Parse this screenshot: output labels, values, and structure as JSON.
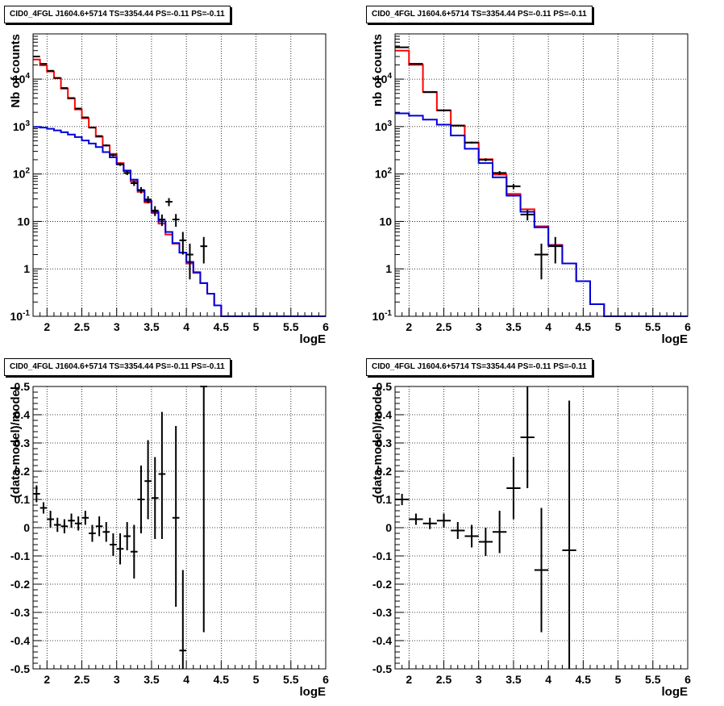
{
  "chart_data": [
    {
      "type": "line",
      "title": "CID0_4FGL J1604.6+5714 TS=3354.44 PS=-0.11 PS=-0.11",
      "xlabel": "logE",
      "ylabel": "Nb of counts",
      "xlim": [
        1.8,
        6.0
      ],
      "ylim": [
        0.1,
        90000
      ],
      "yscale": "log",
      "grid": true,
      "x_ticks": [
        "2",
        "2.5",
        "3",
        "3.5",
        "4",
        "4.5",
        "5",
        "5.5",
        "6"
      ],
      "y_ticks": [
        "10^-1",
        "1",
        "10",
        "10^2",
        "10^3",
        "10^4"
      ],
      "bin_width": 0.1,
      "series": [
        {
          "role": "total-model",
          "color": "#ff0000",
          "values": [
            26000,
            19500,
            14500,
            10500,
            6300,
            3900,
            2300,
            1500,
            960,
            610,
            400,
            265,
            170,
            115,
            70,
            42,
            25,
            15,
            9,
            5.3,
            3.4,
            2.2,
            1.3,
            0.82,
            0.5,
            0.3,
            0.17,
            0.1,
            0.1,
            0.1,
            0.1,
            0.1,
            0.1,
            0.1,
            0.1,
            0.1,
            0.1,
            0.1,
            0.1,
            0.1,
            0.1,
            0.1
          ]
        },
        {
          "role": "component-model",
          "color": "#0000dd",
          "values": [
            980,
            950,
            900,
            830,
            760,
            680,
            600,
            510,
            440,
            370,
            290,
            225,
            160,
            118,
            76,
            45,
            27,
            16,
            10,
            6,
            3.5,
            2.2,
            1.4,
            0.85,
            0.5,
            0.3,
            0.17,
            0.1,
            0.1,
            0.1,
            0.1,
            0.1,
            0.1,
            0.1,
            0.1,
            0.1,
            0.1,
            0.1,
            0.1,
            0.1,
            0.1,
            0.1
          ]
        },
        {
          "role": "data",
          "color": "#000000",
          "points": [
            {
              "x": 1.85,
              "y": 30000,
              "lo": 29800,
              "hi": 30200
            },
            {
              "x": 1.95,
              "y": 21000,
              "lo": 20800,
              "hi": 21200
            },
            {
              "x": 2.05,
              "y": 15000,
              "lo": 14850,
              "hi": 15150
            },
            {
              "x": 2.15,
              "y": 10600,
              "lo": 10450,
              "hi": 10750
            },
            {
              "x": 2.25,
              "y": 6500,
              "lo": 6400,
              "hi": 6600
            },
            {
              "x": 2.35,
              "y": 4000,
              "lo": 3930,
              "hi": 4070
            },
            {
              "x": 2.45,
              "y": 2400,
              "lo": 2350,
              "hi": 2450
            },
            {
              "x": 2.55,
              "y": 1560,
              "lo": 1520,
              "hi": 1600
            },
            {
              "x": 2.65,
              "y": 950,
              "lo": 920,
              "hi": 980
            },
            {
              "x": 2.75,
              "y": 630,
              "lo": 605,
              "hi": 655
            },
            {
              "x": 2.85,
              "y": 400,
              "lo": 380,
              "hi": 420
            },
            {
              "x": 2.95,
              "y": 250,
              "lo": 235,
              "hi": 265
            },
            {
              "x": 3.05,
              "y": 160,
              "lo": 148,
              "hi": 172
            },
            {
              "x": 3.15,
              "y": 105,
              "lo": 95,
              "hi": 115
            },
            {
              "x": 3.25,
              "y": 64,
              "lo": 56,
              "hi": 72
            },
            {
              "x": 3.35,
              "y": 46,
              "lo": 39,
              "hi": 53
            },
            {
              "x": 3.45,
              "y": 29,
              "lo": 24,
              "hi": 34
            },
            {
              "x": 3.55,
              "y": 17,
              "lo": 13,
              "hi": 21
            },
            {
              "x": 3.65,
              "y": 11,
              "lo": 8,
              "hi": 14
            },
            {
              "x": 3.75,
              "y": 26,
              "lo": 21,
              "hi": 31
            },
            {
              "x": 3.85,
              "y": 11,
              "lo": 7.7,
              "hi": 14.3
            },
            {
              "x": 3.95,
              "y": 4,
              "lo": 2,
              "hi": 6
            },
            {
              "x": 4.05,
              "y": 2,
              "lo": 0.6,
              "hi": 3.4
            },
            {
              "x": 4.25,
              "y": 3,
              "lo": 1.3,
              "hi": 4.7
            }
          ]
        }
      ]
    },
    {
      "type": "line",
      "title": "CID0_4FGL J1604.6+5714 TS=3354.44 PS=-0.11 PS=-0.11",
      "xlabel": "logE",
      "ylabel": "nb of counts",
      "xlim": [
        1.8,
        6.0
      ],
      "ylim": [
        0.1,
        90000
      ],
      "yscale": "log",
      "grid": true,
      "x_ticks": [
        "2",
        "2.5",
        "3",
        "3.5",
        "4",
        "4.5",
        "5",
        "5.5",
        "6"
      ],
      "y_ticks": [
        "10^-1",
        "1",
        "10",
        "10^2",
        "10^3",
        "10^4"
      ],
      "bin_width": 0.2,
      "series": [
        {
          "role": "total-model",
          "color": "#ff0000",
          "values": [
            40000,
            20000,
            5400,
            2200,
            1050,
            460,
            205,
            97,
            38,
            18,
            7.9,
            3.2,
            1.3,
            0.55,
            0.18,
            0.1,
            0.1,
            0.1,
            0.1,
            0.1,
            0.1
          ]
        },
        {
          "role": "component-model",
          "color": "#0000dd",
          "values": [
            1900,
            1700,
            1400,
            1100,
            650,
            340,
            170,
            85,
            35,
            16,
            7.5,
            3.1,
            1.3,
            0.55,
            0.18,
            0.1,
            0.1,
            0.1,
            0.1,
            0.1,
            0.1
          ]
        },
        {
          "role": "data",
          "color": "#000000",
          "points": [
            {
              "x": 1.9,
              "y": 47000,
              "lo": 46600,
              "hi": 47400
            },
            {
              "x": 2.1,
              "y": 21000,
              "lo": 20800,
              "hi": 21200
            },
            {
              "x": 2.3,
              "y": 5300,
              "lo": 5200,
              "hi": 5400
            },
            {
              "x": 2.5,
              "y": 2200,
              "lo": 2150,
              "hi": 2250
            },
            {
              "x": 2.7,
              "y": 1050,
              "lo": 1010,
              "hi": 1090
            },
            {
              "x": 2.9,
              "y": 460,
              "lo": 440,
              "hi": 480
            },
            {
              "x": 3.1,
              "y": 200,
              "lo": 186,
              "hi": 214
            },
            {
              "x": 3.3,
              "y": 105,
              "lo": 95,
              "hi": 115
            },
            {
              "x": 3.5,
              "y": 55,
              "lo": 48,
              "hi": 62
            },
            {
              "x": 3.7,
              "y": 14,
              "lo": 10.5,
              "hi": 17.5
            },
            {
              "x": 3.9,
              "y": 2,
              "lo": 0.6,
              "hi": 3.4
            },
            {
              "x": 4.1,
              "y": 3,
              "lo": 1.3,
              "hi": 4.7
            }
          ]
        }
      ]
    },
    {
      "type": "scatter",
      "title": "CID0_4FGL J1604.6+5714 TS=3354.44 PS=-0.11 PS=-0.11",
      "xlabel": "logE",
      "ylabel": "(data-model)/model",
      "xlim": [
        1.8,
        6.0
      ],
      "ylim": [
        -0.5,
        0.5
      ],
      "grid": true,
      "x_ticks": [
        "2",
        "2.5",
        "3",
        "3.5",
        "4",
        "4.5",
        "5",
        "5.5",
        "6"
      ],
      "y_ticks": [
        "-0.5",
        "-0.4",
        "-0.3",
        "-0.2",
        "-0.1",
        "0",
        "0.1",
        "0.2",
        "0.3",
        "0.4",
        "0.5"
      ],
      "points": [
        {
          "x": 1.85,
          "y": 0.12,
          "lo": 0.09,
          "hi": 0.15
        },
        {
          "x": 1.95,
          "y": 0.07,
          "lo": 0.05,
          "hi": 0.09
        },
        {
          "x": 2.05,
          "y": 0.03,
          "lo": 0.0,
          "hi": 0.06
        },
        {
          "x": 2.15,
          "y": 0.01,
          "lo": -0.015,
          "hi": 0.035
        },
        {
          "x": 2.25,
          "y": 0.005,
          "lo": -0.02,
          "hi": 0.03
        },
        {
          "x": 2.35,
          "y": 0.025,
          "lo": 0.0,
          "hi": 0.05
        },
        {
          "x": 2.45,
          "y": 0.015,
          "lo": -0.01,
          "hi": 0.04
        },
        {
          "x": 2.55,
          "y": 0.035,
          "lo": 0.01,
          "hi": 0.06
        },
        {
          "x": 2.65,
          "y": -0.02,
          "lo": -0.05,
          "hi": 0.01
        },
        {
          "x": 2.75,
          "y": 0.005,
          "lo": -0.03,
          "hi": 0.04
        },
        {
          "x": 2.85,
          "y": -0.015,
          "lo": -0.05,
          "hi": 0.02
        },
        {
          "x": 2.95,
          "y": -0.06,
          "lo": -0.1,
          "hi": -0.02
        },
        {
          "x": 3.05,
          "y": -0.075,
          "lo": -0.13,
          "hi": -0.02
        },
        {
          "x": 3.15,
          "y": -0.03,
          "lo": -0.08,
          "hi": 0.02
        },
        {
          "x": 3.25,
          "y": -0.085,
          "lo": -0.18,
          "hi": 0.01
        },
        {
          "x": 3.35,
          "y": 0.1,
          "lo": -0.02,
          "hi": 0.22
        },
        {
          "x": 3.45,
          "y": 0.165,
          "lo": 0.03,
          "hi": 0.31
        },
        {
          "x": 3.55,
          "y": 0.105,
          "lo": -0.04,
          "hi": 0.25
        },
        {
          "x": 3.65,
          "y": 0.19,
          "lo": -0.04,
          "hi": 0.41
        },
        {
          "x": 3.85,
          "y": 0.035,
          "lo": -0.28,
          "hi": 0.36
        },
        {
          "x": 3.95,
          "y": -0.435,
          "lo": -0.5,
          "hi": -0.15
        },
        {
          "x": 4.25,
          "y": 0.5,
          "lo": -0.37,
          "hi": 0.5
        }
      ]
    },
    {
      "type": "scatter",
      "title": "CID0_4FGL J1604.6+5714 TS=3354.44 PS=-0.11 PS=-0.11",
      "xlabel": "logE",
      "ylabel": "(data-model)/model",
      "xlim": [
        1.8,
        6.0
      ],
      "ylim": [
        -0.5,
        0.5
      ],
      "grid": true,
      "x_ticks": [
        "2",
        "2.5",
        "3",
        "3.5",
        "4",
        "4.5",
        "5",
        "5.5",
        "6"
      ],
      "y_ticks": [
        "-0.5",
        "-0.4",
        "-0.3",
        "-0.2",
        "-0.1",
        "0",
        "0.1",
        "0.2",
        "0.3",
        "0.4",
        "0.5"
      ],
      "points": [
        {
          "x": 1.9,
          "y": 0.1,
          "lo": 0.08,
          "hi": 0.12
        },
        {
          "x": 2.1,
          "y": 0.03,
          "lo": 0.01,
          "hi": 0.05
        },
        {
          "x": 2.3,
          "y": 0.015,
          "lo": -0.005,
          "hi": 0.035
        },
        {
          "x": 2.5,
          "y": 0.025,
          "lo": 0.0,
          "hi": 0.05
        },
        {
          "x": 2.7,
          "y": -0.01,
          "lo": -0.04,
          "hi": 0.02
        },
        {
          "x": 2.9,
          "y": -0.03,
          "lo": -0.07,
          "hi": 0.01
        },
        {
          "x": 3.1,
          "y": -0.05,
          "lo": -0.1,
          "hi": 0.0
        },
        {
          "x": 3.3,
          "y": -0.015,
          "lo": -0.09,
          "hi": 0.06
        },
        {
          "x": 3.5,
          "y": 0.14,
          "lo": 0.03,
          "hi": 0.25
        },
        {
          "x": 3.7,
          "y": 0.32,
          "lo": 0.14,
          "hi": 0.5
        },
        {
          "x": 3.9,
          "y": -0.15,
          "lo": -0.37,
          "hi": 0.07
        },
        {
          "x": 4.3,
          "y": -0.08,
          "lo": -0.5,
          "hi": 0.45
        }
      ]
    }
  ]
}
